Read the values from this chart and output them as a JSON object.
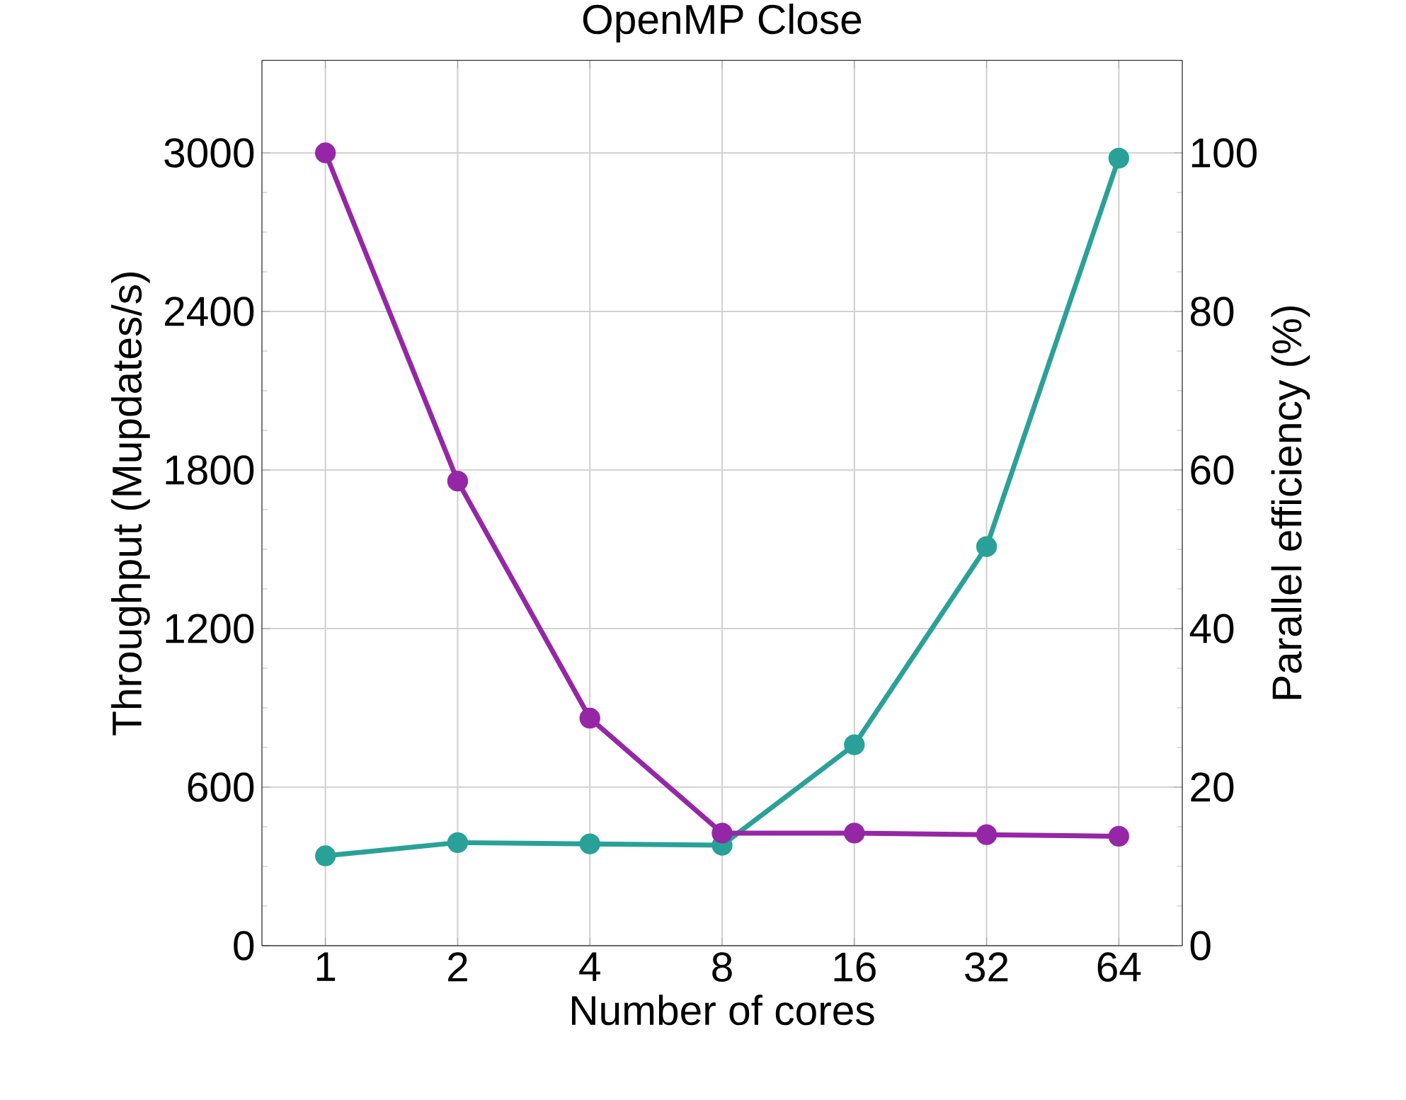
{
  "chart_data": {
    "type": "line",
    "title": "OpenMP Close",
    "xlabel": "Number of cores",
    "ylabel": "Throughput (Mupdates/s)",
    "y2label": "Parallel efficiency (%)",
    "categories": [
      "1",
      "2",
      "4",
      "8",
      "16",
      "32",
      "64"
    ],
    "series": [
      {
        "color": "#2aa198",
        "values": [
          340,
          390,
          385,
          380,
          760,
          1510,
          2980
        ]
      },
      {
        "color": "#9527a6",
        "axis": "y2",
        "values": [
          100,
          58.6,
          28.7,
          14.2,
          14.2,
          14.0,
          13.8
        ]
      }
    ],
    "ylim": [
      0,
      3350
    ],
    "yticks": [
      0,
      600,
      1200,
      1800,
      2400,
      3000
    ],
    "y2lim": [
      0,
      111.67
    ],
    "y2ticks": [
      0,
      20,
      40,
      60,
      80,
      100
    ],
    "grid": true,
    "marker": "circle",
    "line_style": "solid"
  }
}
